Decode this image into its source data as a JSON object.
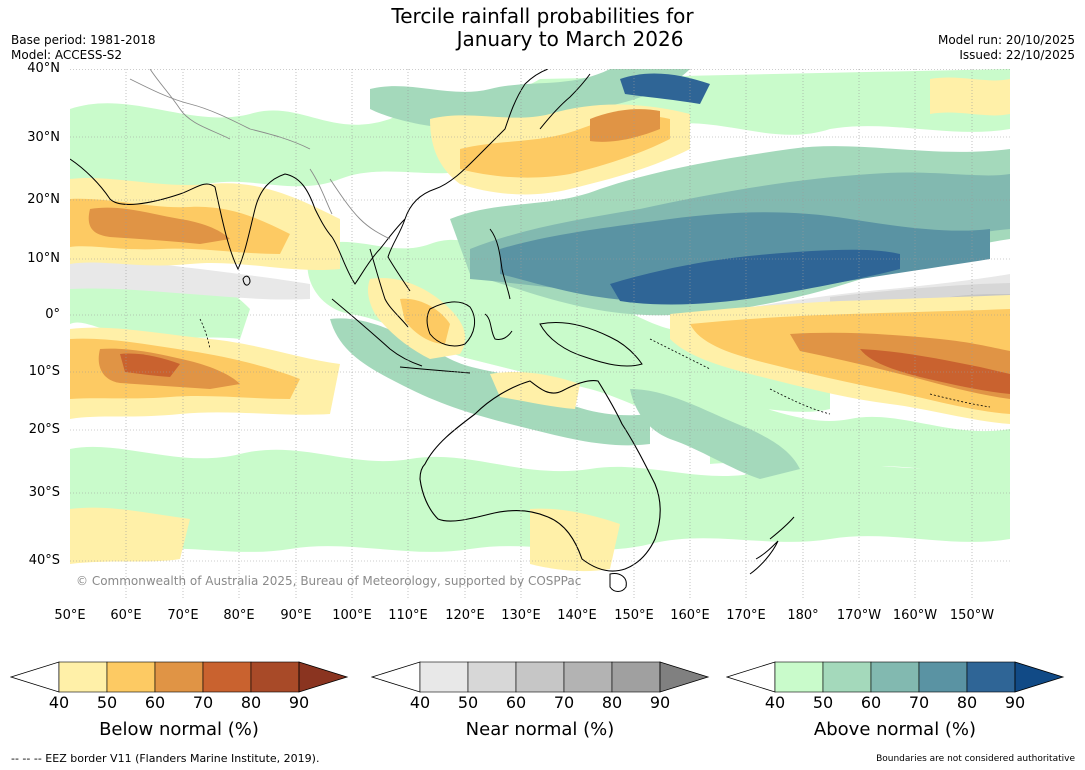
{
  "title": {
    "line1": "Tercile rainfall probabilities for",
    "line2": "January to March 2026"
  },
  "meta": {
    "base_period": "Base period: 1981-2018",
    "model": "Model: ACCESS-S2",
    "model_run": "Model run: 20/10/2025",
    "issued": "Issued: 22/10/2025"
  },
  "map": {
    "copyright": "© Commonwealth of Australia 2025, Bureau of Meteorology, supported by COSPPac",
    "lat_labels": [
      "40°N",
      "30°N",
      "20°N",
      "10°N",
      "0°",
      "10°S",
      "20°S",
      "30°S",
      "40°S"
    ],
    "lon_labels": [
      "50°E",
      "60°E",
      "70°E",
      "80°E",
      "90°E",
      "100°E",
      "110°E",
      "120°E",
      "130°E",
      "140°E",
      "150°E",
      "160°E",
      "170°E",
      "180°",
      "170°W",
      "160°W",
      "150°W"
    ],
    "ocean_color": "#ffffff",
    "coast_color": "#000000",
    "border_color": "#8a8a8a"
  },
  "colorbars": [
    {
      "title": "Below normal (%)",
      "ticks": [
        "40",
        "50",
        "60",
        "70",
        "80",
        "90"
      ],
      "colors": [
        "#ffffff",
        "#fff0a8",
        "#fdca63",
        "#e09445",
        "#c9622f",
        "#a84a28",
        "#8a3420"
      ]
    },
    {
      "title": "Near normal (%)",
      "ticks": [
        "40",
        "50",
        "60",
        "70",
        "80",
        "90"
      ],
      "colors": [
        "#ffffff",
        "#e8e8e8",
        "#d7d7d7",
        "#c6c6c6",
        "#b3b3b3",
        "#a0a0a0",
        "#808080"
      ]
    },
    {
      "title": "Above normal (%)",
      "ticks": [
        "40",
        "50",
        "60",
        "70",
        "80",
        "90"
      ],
      "colors": [
        "#ffffff",
        "#c9fbcb",
        "#a4d9bb",
        "#82b9b0",
        "#5a93a3",
        "#2f6596",
        "#114a86"
      ]
    }
  ],
  "footer": {
    "eez_note": "--  --  -- EEZ border V11 (Flanders Marine Institute, 2019).",
    "disclaimer": "Boundaries are not considered authoritative"
  }
}
